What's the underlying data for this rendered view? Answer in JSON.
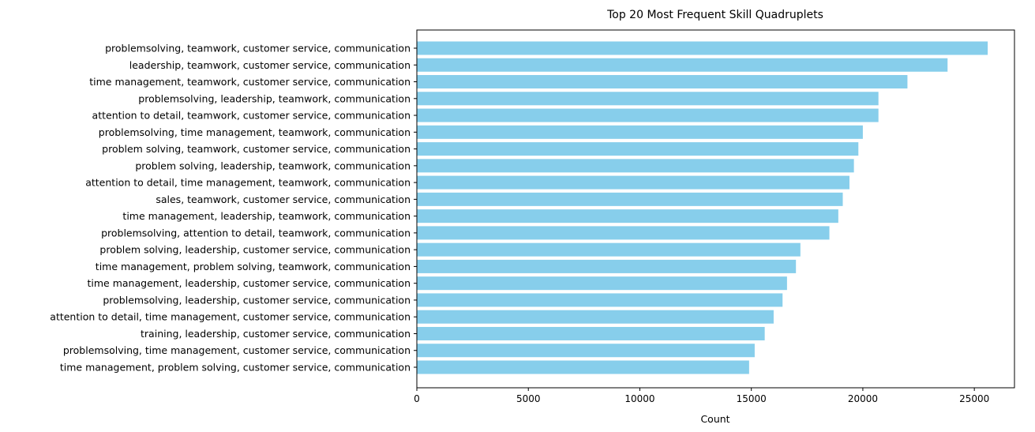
{
  "chart_data": {
    "type": "bar",
    "orientation": "horizontal",
    "title": "Top 20 Most Frequent Skill Quadruplets",
    "xlabel": "Count",
    "ylabel": "",
    "xlim": [
      0,
      26800
    ],
    "xticks": [
      0,
      5000,
      10000,
      15000,
      20000,
      25000
    ],
    "grid": false,
    "bar_color": "#87CEEB",
    "categories": [
      "problemsolving, teamwork, customer service, communication",
      "leadership, teamwork, customer service, communication",
      "time management, teamwork, customer service, communication",
      "problemsolving, leadership, teamwork, communication",
      "attention to detail, teamwork, customer service, communication",
      "problemsolving, time management, teamwork, communication",
      "problem solving, teamwork, customer service, communication",
      "problem solving, leadership, teamwork, communication",
      "attention to detail, time management, teamwork, communication",
      "sales, teamwork, customer service, communication",
      "time management, leadership, teamwork, communication",
      "problemsolving, attention to detail, teamwork, communication",
      "problem solving, leadership, customer service, communication",
      "time management, problem solving, teamwork, communication",
      "time management, leadership, customer service, communication",
      "problemsolving, leadership, customer service, communication",
      "attention to detail, time management, customer service, communication",
      "training, leadership, customer service, communication",
      "problemsolving, time management, customer service, communication",
      "time management, problem solving, customer service, communication"
    ],
    "values": [
      25600,
      23800,
      22000,
      20700,
      20700,
      20000,
      19800,
      19600,
      19400,
      19100,
      18900,
      18500,
      17200,
      17000,
      16600,
      16400,
      16000,
      15600,
      15150,
      14900
    ]
  }
}
